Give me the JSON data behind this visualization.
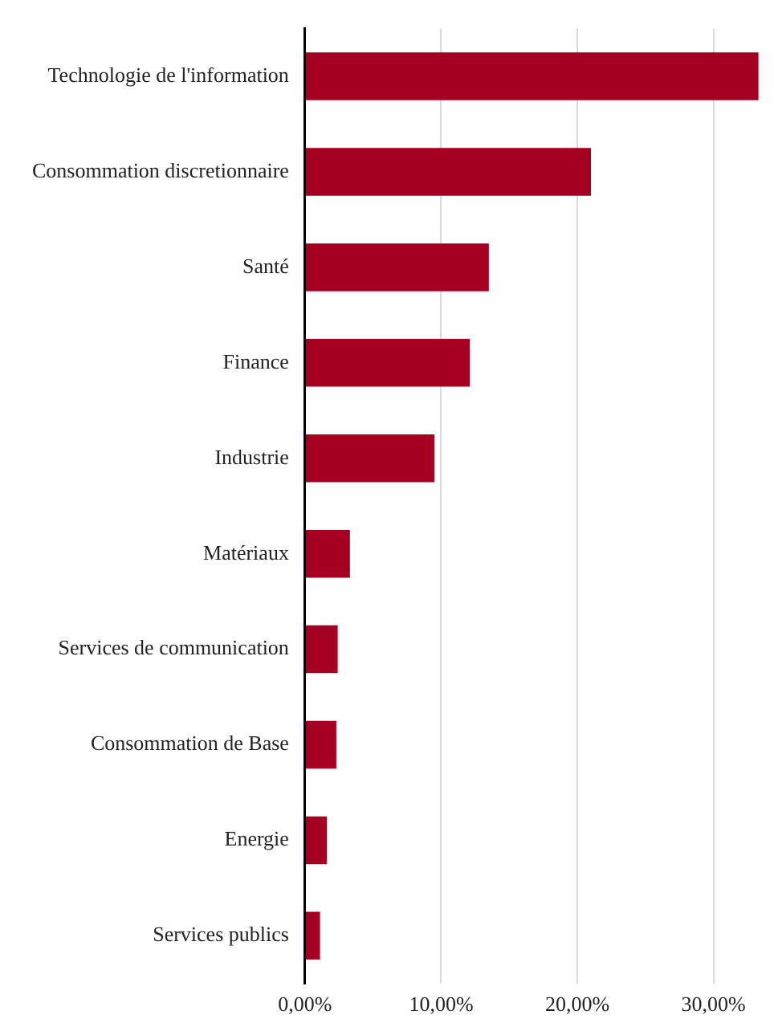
{
  "chart_data": {
    "type": "bar",
    "orientation": "horizontal",
    "categories": [
      "Technologie de l'information",
      "Consommation discretionnaire",
      "Santé",
      "Finance",
      "Industrie",
      "Matériaux",
      "Services de communication",
      "Consommation de Base",
      "Energie",
      "Services publics"
    ],
    "values": [
      33.3,
      21.0,
      13.5,
      12.1,
      9.5,
      3.3,
      2.4,
      2.3,
      1.6,
      1.1
    ],
    "color": "#a50021",
    "xlim": [
      0,
      33.5
    ],
    "xticks": [
      {
        "value": 0,
        "label": "0,00%"
      },
      {
        "value": 10,
        "label": "10,00%"
      },
      {
        "value": 20,
        "label": "20,00%"
      },
      {
        "value": 30,
        "label": "30,00%"
      }
    ],
    "grid": "x",
    "legend": false
  }
}
